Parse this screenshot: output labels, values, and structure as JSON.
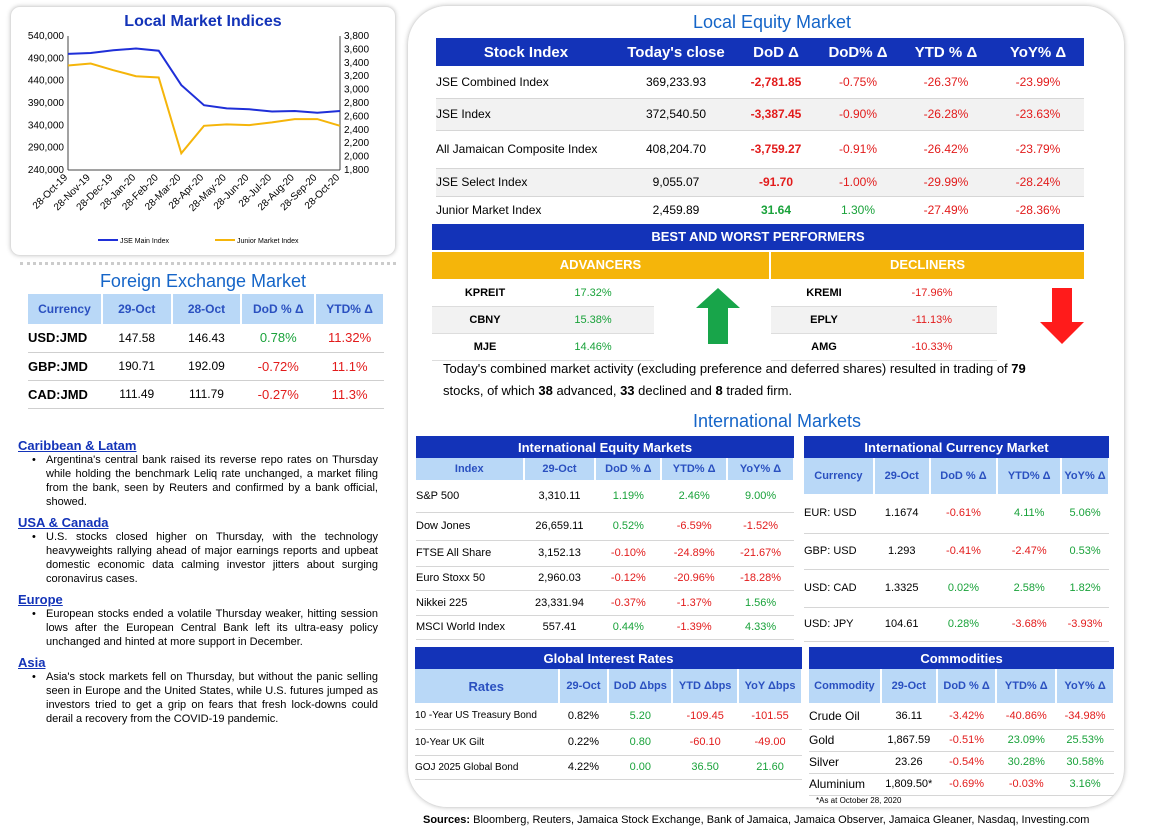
{
  "local_indices": {
    "title": "Local Market Indices",
    "legend": [
      "JSE Main Index",
      "Junior Market Index"
    ],
    "colors": {
      "main": "#1f2fd8",
      "junior": "#f5b50a"
    }
  },
  "chart_data": {
    "type": "line",
    "title": "Local Market Indices",
    "x_ticks": [
      "28-Oct-19",
      "28-Nov-19",
      "28-Dec-19",
      "28-Jan-20",
      "28-Feb-20",
      "28-Mar-20",
      "28-Apr-20",
      "28-May-20",
      "28-Jun-20",
      "28-Jul-20",
      "28-Aug-20",
      "28-Sep-20",
      "28-Oct-20"
    ],
    "y_left": {
      "ticks": [
        "540,000",
        "490,000",
        "440,000",
        "390,000",
        "340,000",
        "290,000",
        "240,000"
      ],
      "min": 240000,
      "max": 540000
    },
    "y_right": {
      "ticks": [
        "3,800",
        "3,600",
        "3,400",
        "3,200",
        "3,000",
        "2,800",
        "2,600",
        "2,400",
        "2,200",
        "2,000",
        "1,800"
      ],
      "min": 1800,
      "max": 3800
    },
    "series": [
      {
        "name": "JSE Main Index",
        "axis": "left",
        "values": [
          500000,
          502000,
          508000,
          512000,
          507000,
          430000,
          385000,
          378000,
          376000,
          371000,
          372000,
          368000,
          372000
        ]
      },
      {
        "name": "Junior Market Index",
        "axis": "right",
        "values": [
          3360,
          3390,
          3290,
          3200,
          3180,
          2050,
          2460,
          2480,
          2470,
          2510,
          2560,
          2560,
          2460
        ]
      }
    ]
  },
  "fx": {
    "title": "Foreign Exchange Market",
    "headers": [
      "Currency",
      "29-Oct",
      "28-Oct",
      "DoD % Δ",
      "YTD% Δ"
    ],
    "rows": [
      [
        "USD:JMD",
        "147.58",
        "146.43",
        "0.78%",
        "11.32%"
      ],
      [
        "GBP:JMD",
        "190.71",
        "192.09",
        "-0.72%",
        "11.1%"
      ],
      [
        "CAD:JMD",
        "111.49",
        "111.79",
        "-0.27%",
        "11.3%"
      ]
    ]
  },
  "news": [
    {
      "heading": "Caribbean & Latam",
      "text": "Argentina's central bank raised its reverse repo rates on Thursday while holding the benchmark Leliq rate unchanged, a market filing from the bank, seen by Reuters and confirmed by a bank official, showed."
    },
    {
      "heading": "USA & Canada",
      "text": "U.S. stocks closed higher on Thursday, with the technology heavyweights rallying ahead of major earnings reports and upbeat domestic economic data calming investor jitters about surging coronavirus cases."
    },
    {
      "heading": "Europe",
      "text": "European stocks ended a volatile Thursday weaker, hitting session lows after the European Central Bank left its ultra-easy policy unchanged and hinted at more support in December."
    },
    {
      "heading": "Asia",
      "text": "Asia's stock markets fell on Thursday, but without the panic selling seen in Europe and the United States, while U.S. futures jumped as investors tried to get a grip on fears that fresh lock-downs could derail a recovery from the COVID-19 pandemic."
    }
  ],
  "equity": {
    "title": "Local Equity Market",
    "headers": [
      "Stock Index",
      "Today's close",
      "DoD Δ",
      "DoD% Δ",
      "YTD % Δ",
      "YoY% Δ"
    ],
    "rows": [
      [
        "JSE Combined Index",
        "369,233.93",
        "-2,781.85",
        "-0.75%",
        "-26.37%",
        "-23.99%"
      ],
      [
        "JSE Index",
        "372,540.50",
        "-3,387.45",
        "-0.90%",
        "-26.28%",
        "-23.63%"
      ],
      [
        "All Jamaican Composite Index",
        "408,204.70",
        "-3,759.27",
        "-0.91%",
        "-26.42%",
        "-23.79%"
      ],
      [
        "JSE Select Index",
        "9,055.07",
        "-91.70",
        "-1.00%",
        "-29.99%",
        "-28.24%"
      ],
      [
        "Junior Market Index",
        "2,459.89",
        "31.64",
        "1.30%",
        "-27.49%",
        "-28.36%"
      ]
    ]
  },
  "performers": {
    "title": "BEST AND WORST PERFORMERS",
    "advancers_label": "ADVANCERS",
    "decliners_label": "DECLINERS",
    "advancers": [
      [
        "KPREIT",
        "17.32%"
      ],
      [
        "CBNY",
        "15.38%"
      ],
      [
        "MJE",
        "14.46%"
      ]
    ],
    "decliners": [
      [
        "KREMI",
        "-17.96%"
      ],
      [
        "EPLY",
        "-11.13%"
      ],
      [
        "AMG",
        "-10.33%"
      ]
    ]
  },
  "summary": {
    "t1": "Today's combined market activity (excluding preference and deferred shares) resulted in trading of ",
    "n1": "79",
    "t2": "stocks, of which ",
    "n2": "38",
    "t3": " advanced, ",
    "n3": "33",
    "t4": " declined and ",
    "n4": "8",
    "t5": " traded firm."
  },
  "intl_title": "International Markets",
  "intl_equity": {
    "title": "International Equity Markets",
    "headers": [
      "Index",
      "29-Oct",
      "DoD % Δ",
      "YTD% Δ",
      "YoY% Δ"
    ],
    "rows": [
      [
        "S&P 500",
        "3,310.11",
        "1.19%",
        "2.46%",
        "9.00%"
      ],
      [
        "Dow Jones",
        "26,659.11",
        "0.52%",
        "-6.59%",
        "-1.52%"
      ],
      [
        "FTSE All Share",
        "3,152.13",
        "-0.10%",
        "-24.89%",
        "-21.67%"
      ],
      [
        "Euro Stoxx 50",
        "2,960.03",
        "-0.12%",
        "-20.96%",
        "-18.28%"
      ],
      [
        "Nikkei 225",
        "23,331.94",
        "-0.37%",
        "-1.37%",
        "1.56%"
      ],
      [
        "MSCI World Index",
        "557.41",
        "0.44%",
        "-1.39%",
        "4.33%"
      ]
    ]
  },
  "intl_currency": {
    "title": "International Currency Market",
    "headers": [
      "Currency",
      "29-Oct",
      "DoD % Δ",
      "YTD% Δ",
      "YoY% Δ"
    ],
    "rows": [
      [
        "EUR: USD",
        "1.1674",
        "-0.61%",
        "4.11%",
        "5.06%"
      ],
      [
        "GBP: USD",
        "1.293",
        "-0.41%",
        "-2.47%",
        "0.53%"
      ],
      [
        "USD: CAD",
        "1.3325",
        "0.02%",
        "2.58%",
        "1.82%"
      ],
      [
        "USD: JPY",
        "104.61",
        "0.28%",
        "-3.68%",
        "-3.93%"
      ]
    ]
  },
  "rates": {
    "title": "Global Interest Rates",
    "headers": [
      "Rates",
      "29-Oct",
      "DoD Δbps",
      "YTD Δbps",
      "YoY Δbps"
    ],
    "rows": [
      [
        "10 -Year US Treasury Bond",
        "0.82%",
        "5.20",
        "-109.45",
        "-101.55"
      ],
      [
        "10-Year UK Gilt",
        "0.22%",
        "0.80",
        "-60.10",
        "-49.00"
      ],
      [
        "GOJ 2025 Global Bond",
        "4.22%",
        "0.00",
        "36.50",
        "21.60"
      ]
    ]
  },
  "commodities": {
    "title": "Commodities",
    "headers": [
      "Commodity",
      "29-Oct",
      "DoD % Δ",
      "YTD% Δ",
      "YoY% Δ"
    ],
    "rows": [
      [
        "Crude Oil",
        "36.11",
        "-3.42%",
        "-40.86%",
        "-34.98%"
      ],
      [
        "Gold",
        "1,867.59",
        "-0.51%",
        "23.09%",
        "25.53%"
      ],
      [
        "Silver",
        "23.26",
        "-0.54%",
        "30.28%",
        "30.58%"
      ],
      [
        "Aluminium",
        "1,809.50*",
        "-0.69%",
        "-0.03%",
        "3.16%"
      ]
    ],
    "note": "*As at October 28, 2020"
  },
  "sources": {
    "label": "Sources:",
    "text": " Bloomberg, Reuters, Jamaica Stock Exchange, Bank of Jamaica, Jamaica Observer, Jamaica Gleaner, Nasdaq, Investing.com"
  }
}
